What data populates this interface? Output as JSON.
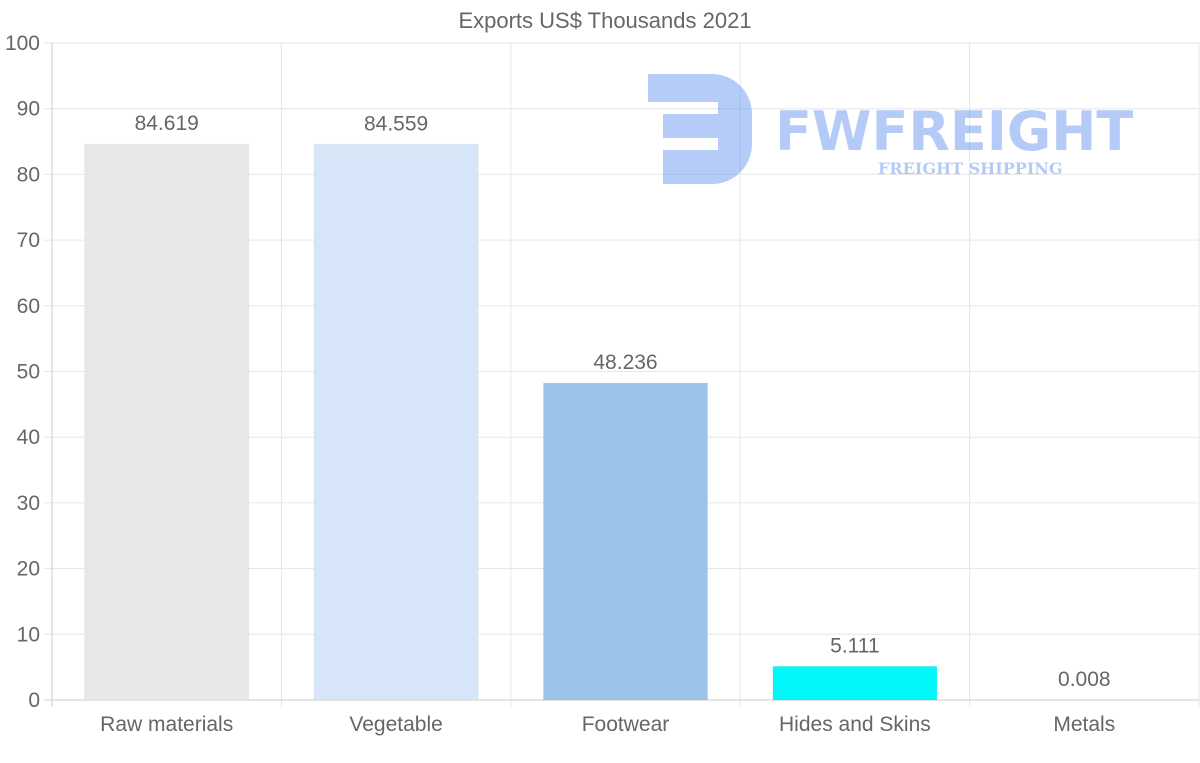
{
  "chart_data": {
    "type": "bar",
    "title": "Exports US$ Thousands 2021",
    "categories": [
      "Raw materials",
      "Vegetable",
      "Footwear",
      "Hides and Skins",
      "Metals"
    ],
    "values": [
      84.619,
      84.559,
      48.236,
      5.111,
      0.008
    ],
    "value_labels": [
      "84.619",
      "84.559",
      "48.236",
      "5.111",
      "0.008"
    ],
    "colors": [
      "#e8e8e8",
      "#d6e6f8",
      "#9cc4e8",
      "#00f8f8",
      "#f4e1e1"
    ],
    "ylim": [
      0,
      100
    ],
    "yticks": [
      0,
      10,
      20,
      30,
      40,
      50,
      60,
      70,
      80,
      90,
      100
    ],
    "xlabel": "",
    "ylabel": "",
    "grid": true,
    "legend": "none"
  },
  "watermark": {
    "name": "FWFREIGHT",
    "tagline": "FREIGHT SHIPPING",
    "color": "#5b8def"
  }
}
